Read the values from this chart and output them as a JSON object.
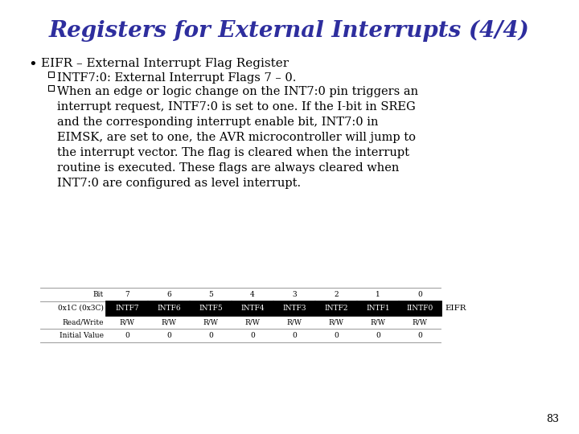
{
  "title": "Registers for External Interrupts (4/4)",
  "title_color": "#2e2e9e",
  "title_fontsize": 20,
  "bg_color": "#ffffff",
  "bullet_text": "EIFR – External Interrupt Flag Register",
  "sub_bullet1": "INTF7:0: External Interrupt Flags 7 – 0.",
  "sub_bullet2": "When an edge or logic change on the INT7:0 pin triggers an\ninterrupt request, INTF7:0 is set to one. If the I-bit in SREG\nand the corresponding interrupt enable bit, INT7:0 in\nEIMSK, are set to one, the AVR microcontroller will jump to\nthe interrupt vector. The flag is cleared when the interrupt\nroutine is executed. These flags are always cleared when\nINT7:0 are configured as level interrupt.",
  "table": {
    "bit_row": [
      "Bit",
      "7",
      "6",
      "5",
      "4",
      "3",
      "2",
      "1",
      "0"
    ],
    "addr_row": [
      "0x1C (0x3C)",
      "INTF7",
      "INTF6",
      "INTF5",
      "INTF4",
      "INTF3",
      "INTF2",
      "INTF1",
      "IINTF0"
    ],
    "rw_row": [
      "Read/Write",
      "R/W",
      "R/W",
      "R/W",
      "R/W",
      "R/W",
      "R/W",
      "R/W",
      "R/W"
    ],
    "init_row": [
      "Initial Value",
      "0",
      "0",
      "0",
      "0",
      "0",
      "0",
      "0",
      "0"
    ],
    "reg_label": "EIFR"
  },
  "page_number": "83",
  "text_color": "#000000",
  "table_header_bg": "#000000",
  "table_header_fg": "#ffffff",
  "table_font_size": 6.5,
  "body_font_size": 10.5,
  "bullet_font_size": 11
}
